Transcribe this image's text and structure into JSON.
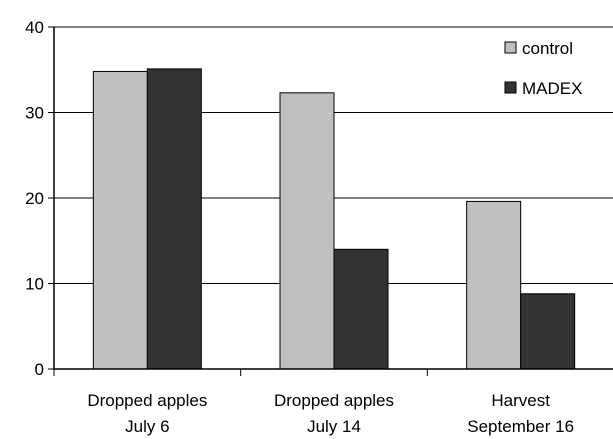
{
  "chart_data": {
    "type": "bar",
    "categories": [
      [
        "Dropped apples",
        "July 6"
      ],
      [
        "Dropped apples",
        "July 14"
      ],
      [
        "Harvest",
        "September 16"
      ]
    ],
    "series": [
      {
        "name": "control",
        "values": [
          34.8,
          32.3,
          19.6
        ],
        "color": "#c0c0c0"
      },
      {
        "name": "MADEX",
        "values": [
          35.1,
          14.0,
          8.8
        ],
        "color": "#333333"
      }
    ],
    "yticks": [
      0,
      10,
      20,
      30,
      40
    ],
    "ylim": [
      0,
      40
    ],
    "grid": true,
    "legend_position": "top-right",
    "title": "",
    "xlabel": "",
    "ylabel": ""
  }
}
